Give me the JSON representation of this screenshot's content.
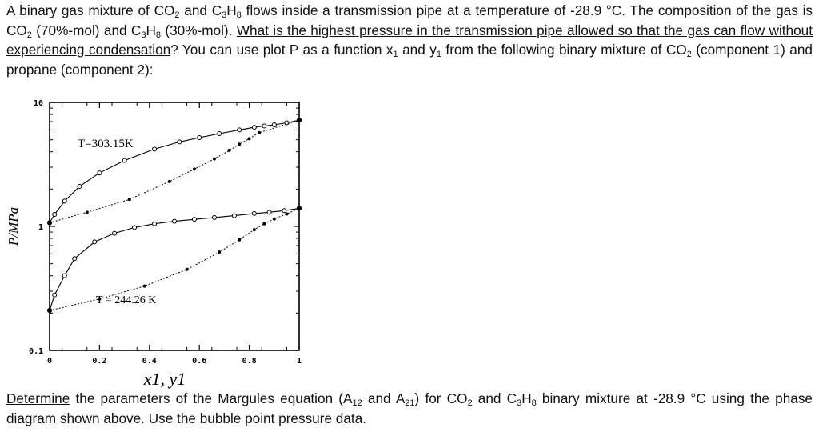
{
  "problem": {
    "line1_a": "A binary gas mixture of CO",
    "line1_b": " and C",
    "line1_c": "H",
    "line1_d": " flows inside a transmission pipe at a temperature of -28.9 °C. The composition of the gas is CO",
    "line1_e": " (70%-mol) and C",
    "line1_f": "H",
    "line1_g": " (30%-mol). ",
    "question": "What is the highest pressure in the transmission pipe allowed so that the gas can flow without experiencing condensation",
    "line1_h": "? You can use plot P as a function x",
    "line1_i": " and y",
    "line1_j": " from the following binary mixture of CO",
    "line1_k": " (component 1) and propane (component 2):",
    "sub2": "2",
    "sub3": "3",
    "sub8": "8",
    "sub1": "1"
  },
  "task": {
    "determine": "Determine",
    "rest_a": " the parameters of the Margules equation (A",
    "sub12": "12",
    "rest_b": " and A",
    "sub21": "21",
    "rest_c": ") for CO",
    "sub2": "2",
    "rest_d": " and C",
    "sub3": "3",
    "rest_e": "H",
    "sub8": "8",
    "rest_f": " binary mixture at -28.9 °C using the phase diagram shown above. Use the bubble point pressure data."
  },
  "chart_data": {
    "type": "scatter",
    "title": "",
    "xlabel": "x1, y1",
    "ylabel": "P/MPa",
    "xscale": "linear",
    "yscale": "log",
    "xlim": [
      0,
      1
    ],
    "ylim": [
      0.1,
      10
    ],
    "x_ticks": [
      "0",
      "0.2",
      "0.4",
      "0.6",
      "0.8",
      "1"
    ],
    "y_ticks": [
      "0.1",
      "1",
      "10"
    ],
    "annotations": [
      "T=303.15K",
      "T = 244.26 K"
    ],
    "series": [
      {
        "name": "T=303.15K",
        "curve": "bubble",
        "x": [
          0,
          0.02,
          0.06,
          0.12,
          0.2,
          0.3,
          0.42,
          0.52,
          0.6,
          0.68,
          0.76,
          0.82,
          0.86,
          0.9,
          0.95,
          1
        ],
        "y": [
          1.07,
          1.25,
          1.6,
          2.1,
          2.7,
          3.4,
          4.2,
          4.8,
          5.2,
          5.6,
          6.0,
          6.3,
          6.45,
          6.6,
          6.85,
          7.2
        ]
      },
      {
        "name": "T=303.15K",
        "curve": "dew",
        "x": [
          0,
          0.15,
          0.32,
          0.48,
          0.58,
          0.66,
          0.72,
          0.76,
          0.8,
          0.84,
          1
        ],
        "y": [
          1.07,
          1.3,
          1.65,
          2.3,
          2.9,
          3.5,
          4.1,
          4.6,
          5.1,
          5.7,
          7.2
        ]
      },
      {
        "name": "T = 244.26 K",
        "curve": "bubble",
        "x": [
          0,
          0.02,
          0.06,
          0.1,
          0.18,
          0.26,
          0.34,
          0.42,
          0.5,
          0.58,
          0.66,
          0.74,
          0.82,
          0.88,
          0.94,
          1
        ],
        "y": [
          0.21,
          0.28,
          0.4,
          0.55,
          0.75,
          0.88,
          0.98,
          1.05,
          1.1,
          1.14,
          1.18,
          1.22,
          1.27,
          1.3,
          1.34,
          1.4
        ]
      },
      {
        "name": "T = 244.26 K",
        "curve": "dew",
        "x": [
          0,
          0.2,
          0.38,
          0.55,
          0.68,
          0.76,
          0.82,
          0.86,
          0.9,
          0.95,
          1
        ],
        "y": [
          0.21,
          0.26,
          0.33,
          0.45,
          0.62,
          0.78,
          0.94,
          1.05,
          1.15,
          1.26,
          1.4
        ]
      }
    ]
  }
}
